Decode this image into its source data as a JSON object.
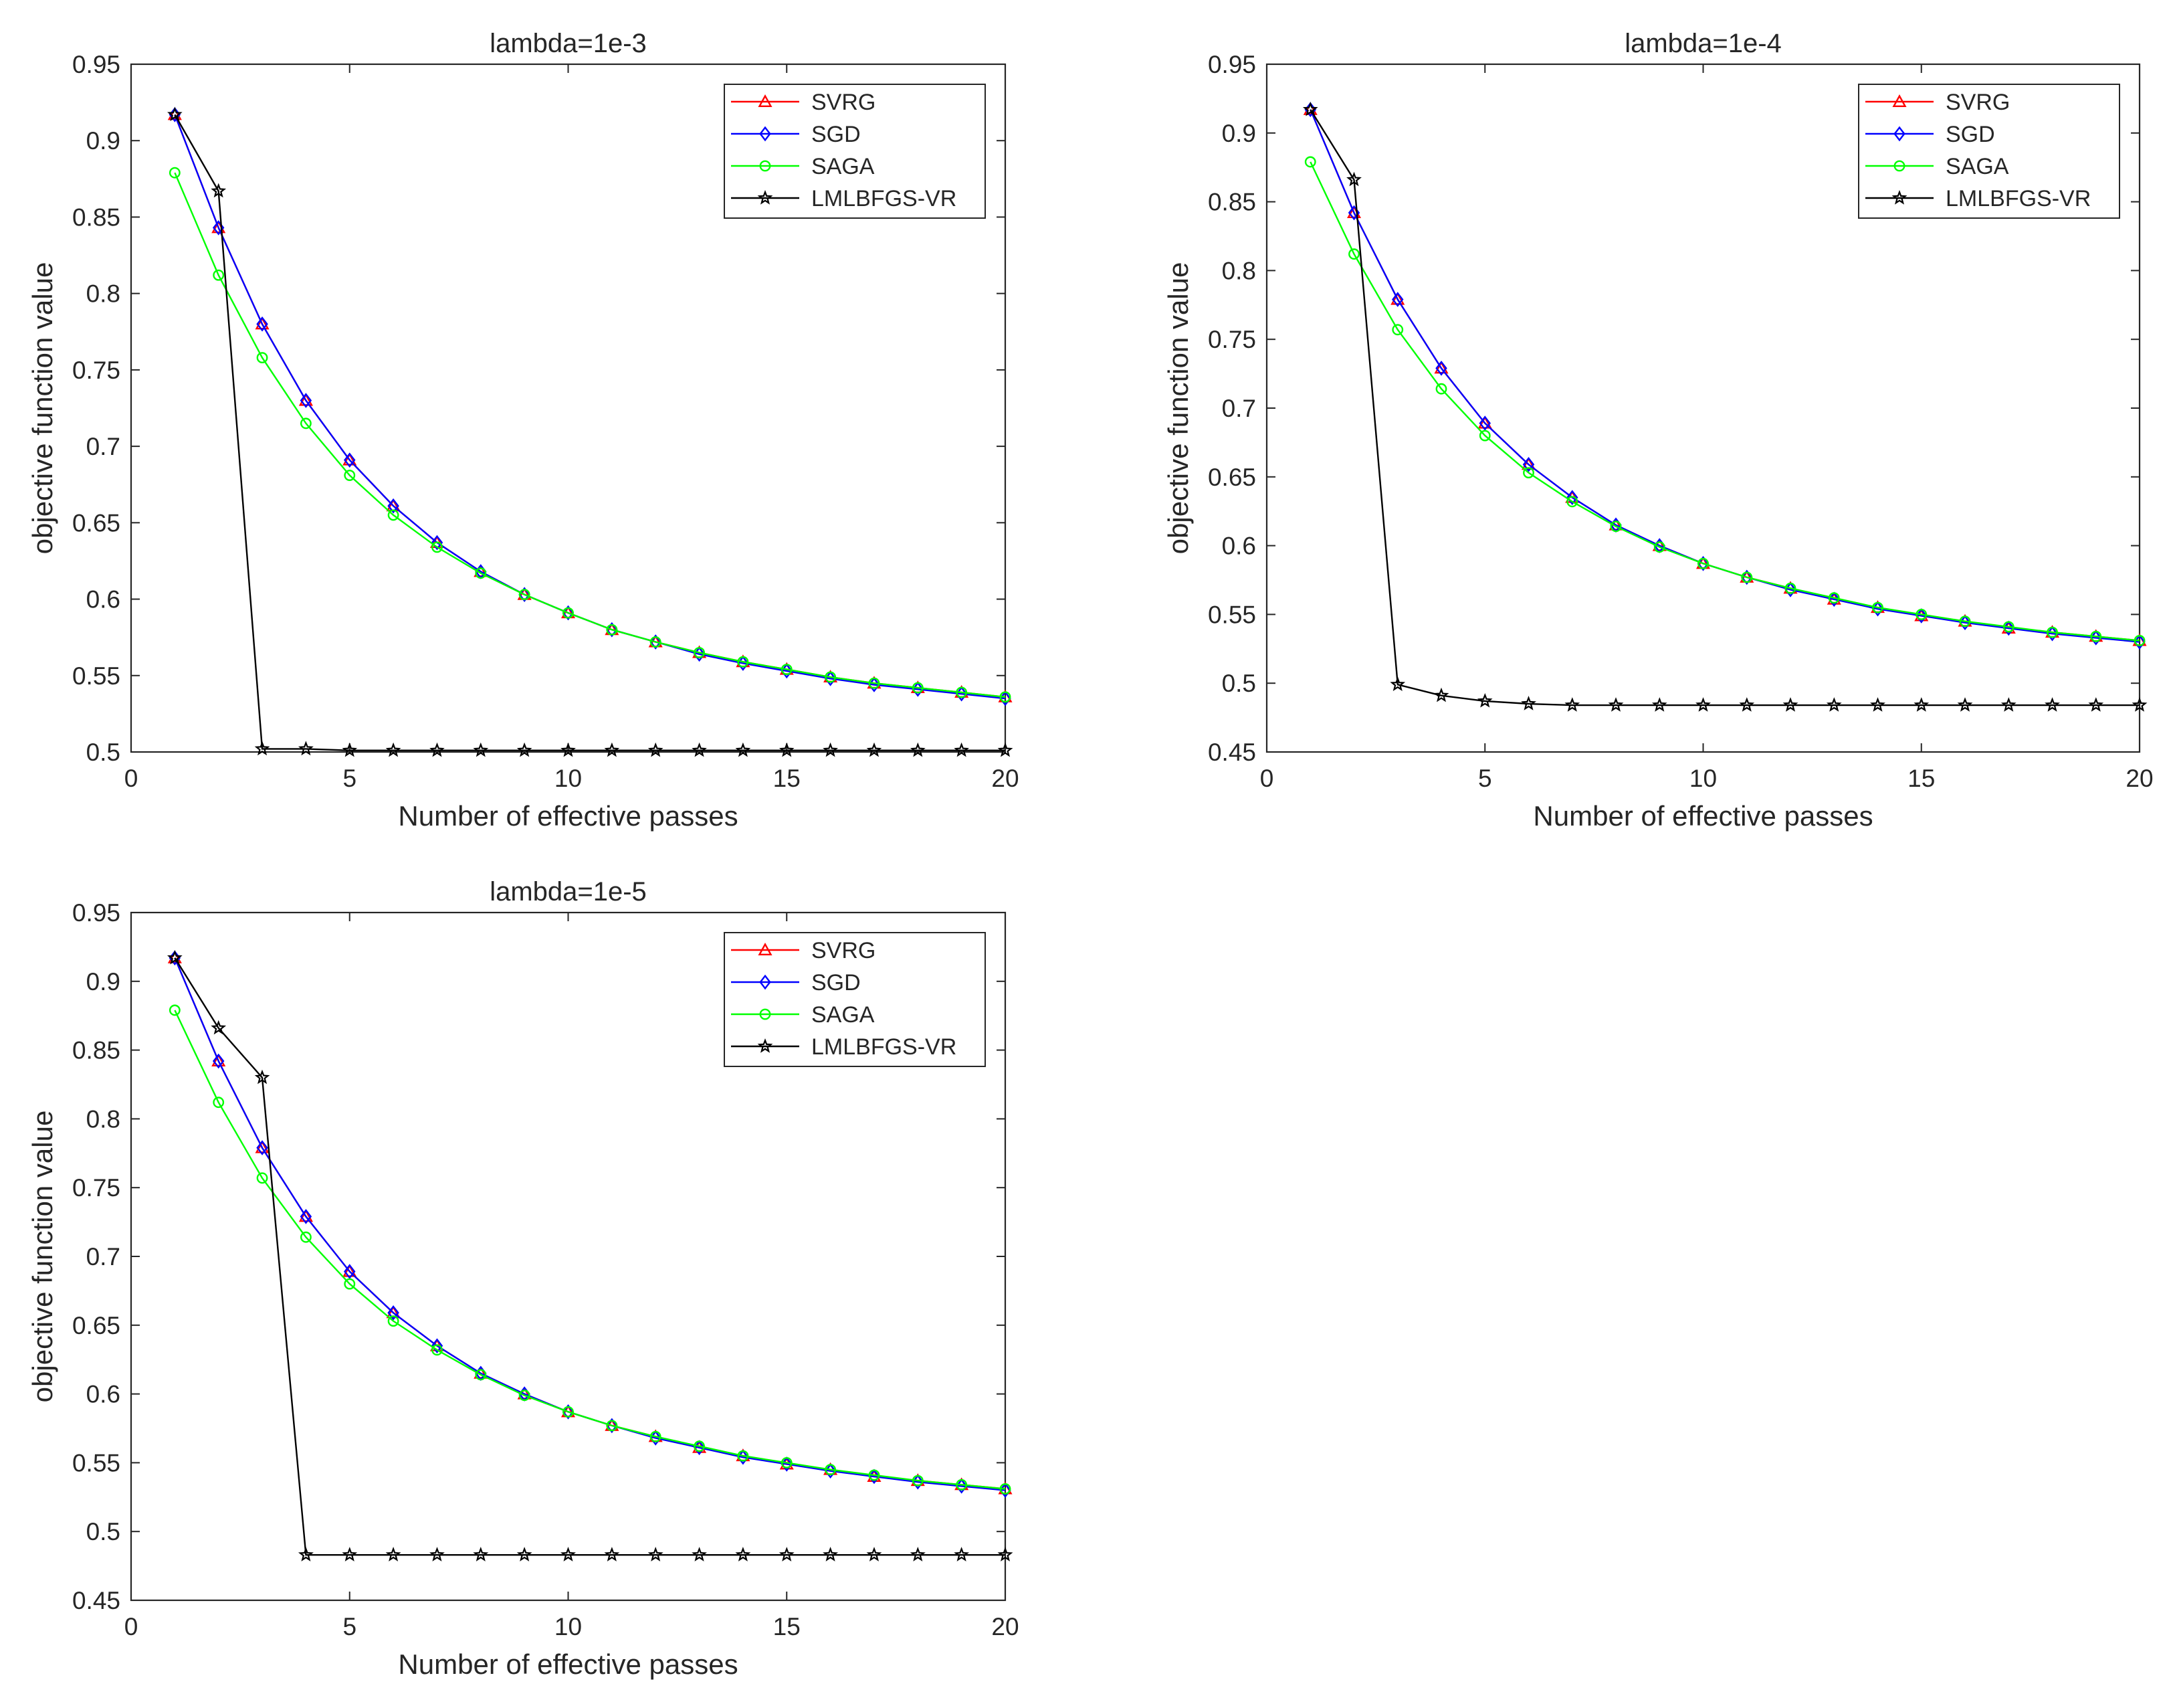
{
  "chart_data": [
    {
      "type": "line",
      "title": "lambda=1e-3",
      "xlabel": "Number of effective passes",
      "ylabel": "objective function value",
      "xlim": [
        0,
        20
      ],
      "ylim": [
        0.5,
        0.95
      ],
      "xticks": [
        0,
        5,
        10,
        15,
        20
      ],
      "xtick_labels": [
        "0",
        "5",
        "10",
        "15",
        "20"
      ],
      "yticks": [
        0.5,
        0.55,
        0.6,
        0.65,
        0.7,
        0.75,
        0.8,
        0.85,
        0.9,
        0.95
      ],
      "ytick_labels": [
        "0.5",
        "0.55",
        "0.6",
        "0.65",
        "0.7",
        "0.75",
        "0.8",
        "0.85",
        "0.9",
        "0.95"
      ],
      "grid": false,
      "legend_position": "top-right",
      "x": [
        1,
        2,
        3,
        4,
        5,
        6,
        7,
        8,
        9,
        10,
        11,
        12,
        13,
        14,
        15,
        16,
        17,
        18,
        19,
        20
      ],
      "series": [
        {
          "name": "SVRG",
          "color": "#ff0000",
          "marker": "triangle",
          "values": [
            0.917,
            0.843,
            0.78,
            0.73,
            0.691,
            0.661,
            0.637,
            0.618,
            0.603,
            0.591,
            0.58,
            0.572,
            0.565,
            0.559,
            0.554,
            0.549,
            0.545,
            0.542,
            0.539,
            0.536
          ]
        },
        {
          "name": "SGD",
          "color": "#0000ff",
          "marker": "diamond",
          "values": [
            0.917,
            0.843,
            0.78,
            0.73,
            0.691,
            0.661,
            0.637,
            0.618,
            0.603,
            0.591,
            0.58,
            0.572,
            0.564,
            0.558,
            0.553,
            0.548,
            0.544,
            0.541,
            0.538,
            0.535
          ]
        },
        {
          "name": "SAGA",
          "color": "#00ff00",
          "marker": "circle",
          "values": [
            0.879,
            0.812,
            0.758,
            0.715,
            0.681,
            0.655,
            0.634,
            0.617,
            0.603,
            0.591,
            0.58,
            0.572,
            0.565,
            0.559,
            0.554,
            0.549,
            0.545,
            0.542,
            0.539,
            0.536
          ]
        },
        {
          "name": "LMLBFGS-VR",
          "color": "#000000",
          "marker": "star",
          "values": [
            0.917,
            0.867,
            0.502,
            0.502,
            0.501,
            0.501,
            0.501,
            0.501,
            0.501,
            0.501,
            0.501,
            0.501,
            0.501,
            0.501,
            0.501,
            0.501,
            0.501,
            0.501,
            0.501,
            0.501
          ]
        }
      ]
    },
    {
      "type": "line",
      "title": "lambda=1e-4",
      "xlabel": "Number of effective passes",
      "ylabel": "objective function value",
      "xlim": [
        0,
        20
      ],
      "ylim": [
        0.45,
        0.95
      ],
      "xticks": [
        0,
        5,
        10,
        15,
        20
      ],
      "xtick_labels": [
        "0",
        "5",
        "10",
        "15",
        "20"
      ],
      "yticks": [
        0.45,
        0.5,
        0.55,
        0.6,
        0.65,
        0.7,
        0.75,
        0.8,
        0.85,
        0.9,
        0.95
      ],
      "ytick_labels": [
        "0.45",
        "0.5",
        "0.55",
        "0.6",
        "0.65",
        "0.7",
        "0.75",
        "0.8",
        "0.85",
        "0.9",
        "0.95"
      ],
      "grid": false,
      "legend_position": "top-right",
      "x": [
        1,
        2,
        3,
        4,
        5,
        6,
        7,
        8,
        9,
        10,
        11,
        12,
        13,
        14,
        15,
        16,
        17,
        18,
        19,
        20
      ],
      "series": [
        {
          "name": "SVRG",
          "color": "#ff0000",
          "marker": "triangle",
          "values": [
            0.917,
            0.842,
            0.779,
            0.729,
            0.689,
            0.659,
            0.635,
            0.615,
            0.6,
            0.587,
            0.577,
            0.569,
            0.561,
            0.555,
            0.549,
            0.545,
            0.54,
            0.537,
            0.534,
            0.531
          ]
        },
        {
          "name": "SGD",
          "color": "#0000ff",
          "marker": "diamond",
          "values": [
            0.917,
            0.842,
            0.779,
            0.729,
            0.689,
            0.659,
            0.635,
            0.615,
            0.6,
            0.587,
            0.577,
            0.568,
            0.561,
            0.554,
            0.549,
            0.544,
            0.54,
            0.536,
            0.533,
            0.53
          ]
        },
        {
          "name": "SAGA",
          "color": "#00ff00",
          "marker": "circle",
          "values": [
            0.879,
            0.812,
            0.757,
            0.714,
            0.68,
            0.653,
            0.632,
            0.614,
            0.599,
            0.587,
            0.577,
            0.569,
            0.562,
            0.555,
            0.55,
            0.545,
            0.541,
            0.537,
            0.534,
            0.531
          ]
        },
        {
          "name": "LMLBFGS-VR",
          "color": "#000000",
          "marker": "star",
          "values": [
            0.917,
            0.866,
            0.499,
            0.491,
            0.487,
            0.485,
            0.484,
            0.484,
            0.484,
            0.484,
            0.484,
            0.484,
            0.484,
            0.484,
            0.484,
            0.484,
            0.484,
            0.484,
            0.484,
            0.484
          ]
        }
      ]
    },
    {
      "type": "line",
      "title": "lambda=1e-5",
      "xlabel": "Number of effective passes",
      "ylabel": "objective function value",
      "xlim": [
        0,
        20
      ],
      "ylim": [
        0.45,
        0.95
      ],
      "xticks": [
        0,
        5,
        10,
        15,
        20
      ],
      "xtick_labels": [
        "0",
        "5",
        "10",
        "15",
        "20"
      ],
      "yticks": [
        0.45,
        0.5,
        0.55,
        0.6,
        0.65,
        0.7,
        0.75,
        0.8,
        0.85,
        0.9,
        0.95
      ],
      "ytick_labels": [
        "0.45",
        "0.5",
        "0.55",
        "0.6",
        "0.65",
        "0.7",
        "0.75",
        "0.8",
        "0.85",
        "0.9",
        "0.95"
      ],
      "grid": false,
      "legend_position": "top-right",
      "x": [
        1,
        2,
        3,
        4,
        5,
        6,
        7,
        8,
        9,
        10,
        11,
        12,
        13,
        14,
        15,
        16,
        17,
        18,
        19,
        20
      ],
      "series": [
        {
          "name": "SVRG",
          "color": "#ff0000",
          "marker": "triangle",
          "values": [
            0.917,
            0.842,
            0.779,
            0.729,
            0.689,
            0.659,
            0.635,
            0.615,
            0.6,
            0.587,
            0.577,
            0.569,
            0.561,
            0.555,
            0.549,
            0.545,
            0.54,
            0.537,
            0.534,
            0.531
          ]
        },
        {
          "name": "SGD",
          "color": "#0000ff",
          "marker": "diamond",
          "values": [
            0.917,
            0.842,
            0.779,
            0.729,
            0.689,
            0.659,
            0.635,
            0.615,
            0.6,
            0.587,
            0.577,
            0.568,
            0.561,
            0.554,
            0.549,
            0.544,
            0.54,
            0.536,
            0.533,
            0.53
          ]
        },
        {
          "name": "SAGA",
          "color": "#00ff00",
          "marker": "circle",
          "values": [
            0.879,
            0.812,
            0.757,
            0.714,
            0.68,
            0.653,
            0.632,
            0.614,
            0.599,
            0.587,
            0.577,
            0.569,
            0.562,
            0.555,
            0.55,
            0.545,
            0.541,
            0.537,
            0.534,
            0.531
          ]
        },
        {
          "name": "LMLBFGS-VR",
          "color": "#000000",
          "marker": "star",
          "values": [
            0.917,
            0.866,
            0.83,
            0.483,
            0.483,
            0.483,
            0.483,
            0.483,
            0.483,
            0.483,
            0.483,
            0.483,
            0.483,
            0.483,
            0.483,
            0.483,
            0.483,
            0.483,
            0.483,
            0.483
          ]
        }
      ]
    }
  ]
}
